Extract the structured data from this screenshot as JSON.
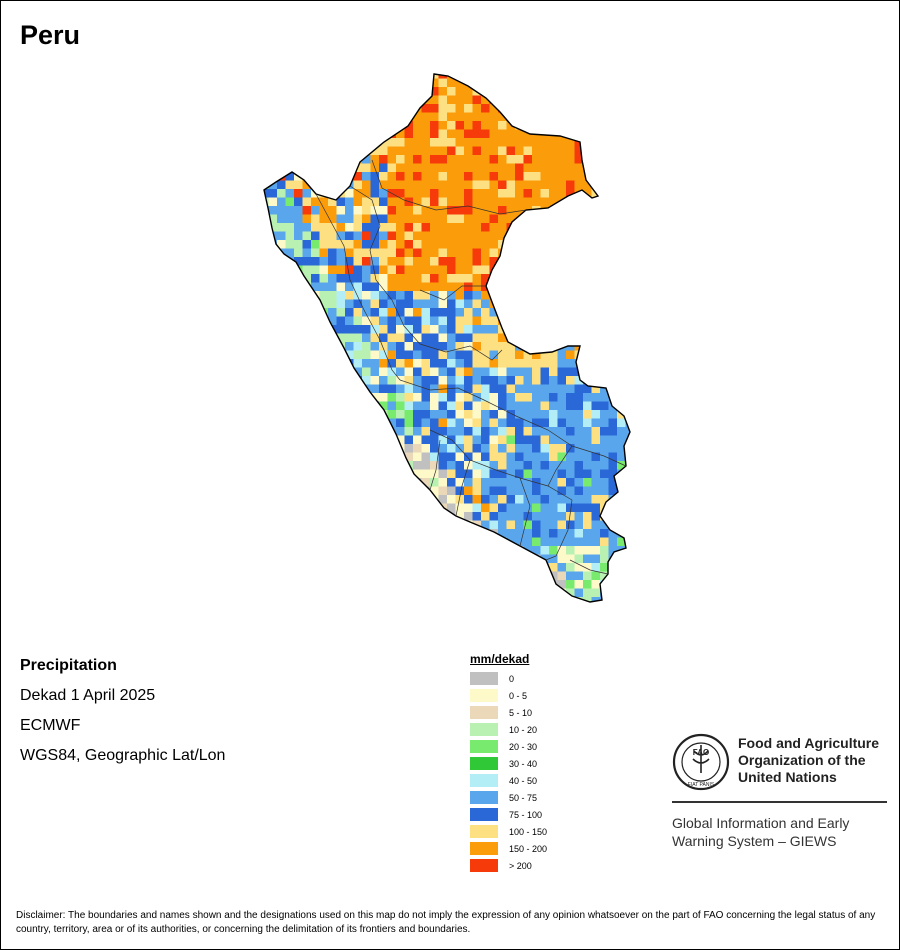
{
  "title": "Peru",
  "info": {
    "variable": "Precipitation",
    "period": "Dekad 1 April 2025",
    "model": "ECMWF",
    "projection": "WGS84, Geographic Lat/Lon"
  },
  "legend": {
    "title": "mm/dekad",
    "classes": [
      {
        "label": "0",
        "color": "#c0c0c0"
      },
      {
        "label": "0 - 5",
        "color": "#fdf9c9"
      },
      {
        "label": "5 - 10",
        "color": "#ead8b9"
      },
      {
        "label": "10 - 20",
        "color": "#b9f1b2"
      },
      {
        "label": "20 - 30",
        "color": "#78ea6d"
      },
      {
        "label": "30 - 40",
        "color": "#31c838"
      },
      {
        "label": "40 - 50",
        "color": "#b3eef7"
      },
      {
        "label": "50 - 75",
        "color": "#5aa6ec"
      },
      {
        "label": "75 - 100",
        "color": "#2a68d8"
      },
      {
        "label": "100 - 150",
        "color": "#fde081"
      },
      {
        "label": "150 - 200",
        "color": "#fb9d0b"
      },
      {
        "label": "> 200",
        "color": "#f63a0a"
      }
    ]
  },
  "org": {
    "name": "Food and Agriculture\nOrganization of the\nUnited Nations",
    "emblem_letters": "FAO",
    "emblem_motto": "FIAT PANIS",
    "system": "Global Information and Early\nWarning System – GIEWS"
  },
  "disclaimer": "Disclaimer: The boundaries and names shown and the designations used on this map do not imply the expression of any opinion whatsoever on the part of FAO concerning the legal status of any country, territory, area or of its authorities, or concerning the delimitation of its frontiers and boundaries."
}
